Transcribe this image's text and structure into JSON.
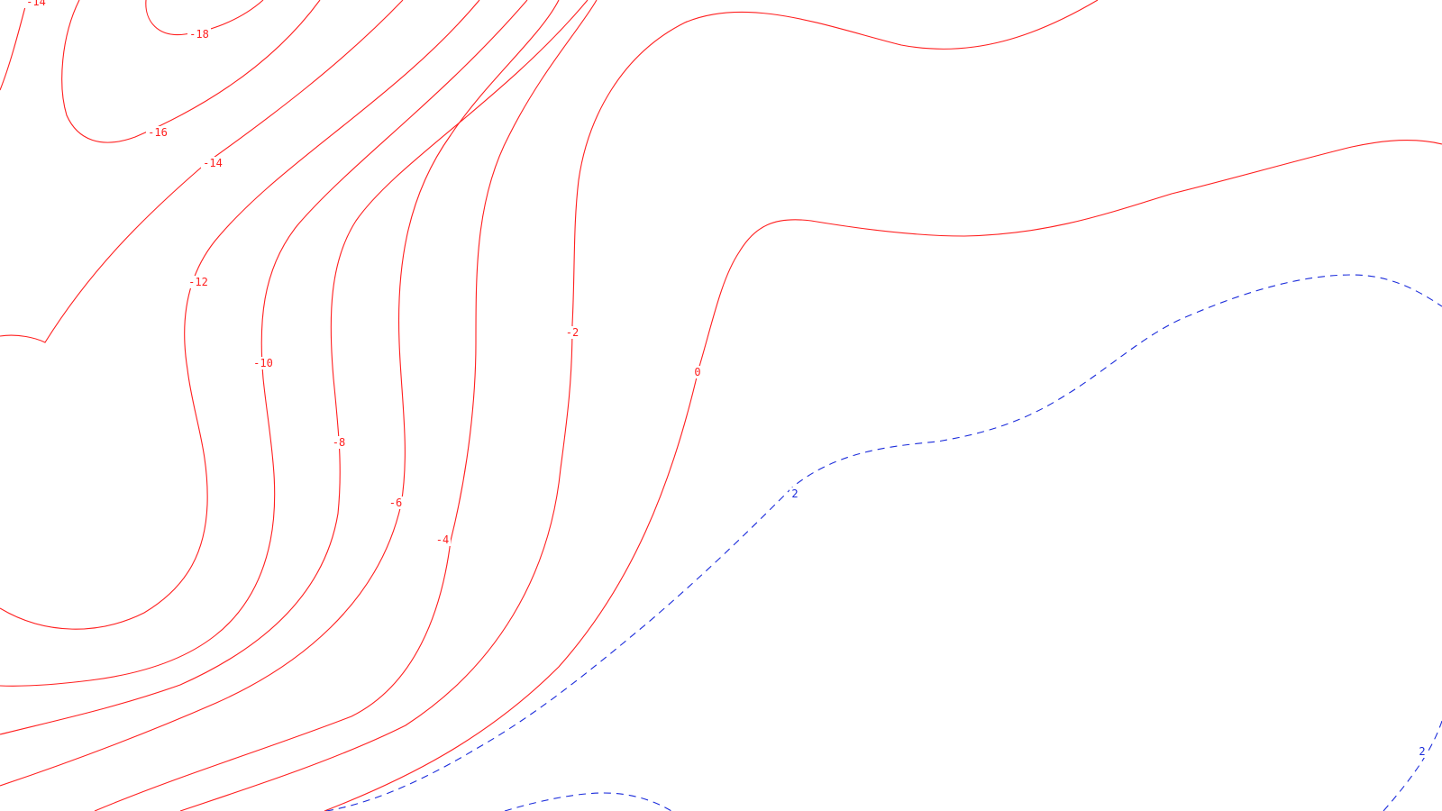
{
  "map": {
    "style": {
      "negative_color": "#ff1f1f",
      "positive_color": "#1a2bdb",
      "negative_line": "solid",
      "positive_line": "dashed",
      "background": "#ffffff"
    },
    "contours": [
      {
        "value": -18,
        "label": "-18"
      },
      {
        "value": -16,
        "label": "-16"
      },
      {
        "value": -14,
        "label": "-14"
      },
      {
        "value": -12,
        "label": "-12"
      },
      {
        "value": -10,
        "label": "-10"
      },
      {
        "value": -8,
        "label": "-8"
      },
      {
        "value": -6,
        "label": "-6"
      },
      {
        "value": -4,
        "label": "-4"
      },
      {
        "value": -2,
        "label": "-2"
      },
      {
        "value": 0,
        "label": "0"
      },
      {
        "value": 2,
        "label": "2"
      }
    ]
  }
}
